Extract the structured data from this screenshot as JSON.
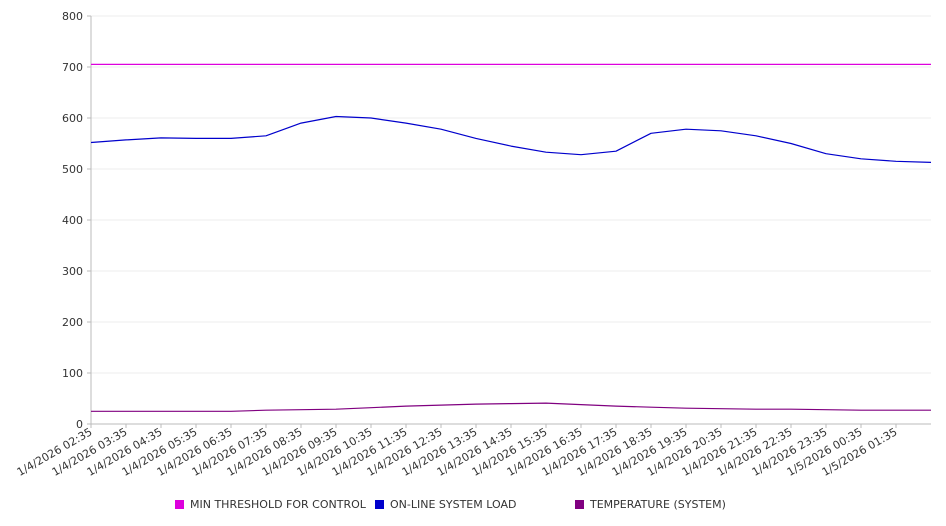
{
  "chart_data": {
    "type": "line",
    "ylim": [
      0,
      800
    ],
    "y_ticks": [
      0,
      100,
      200,
      300,
      400,
      500,
      600,
      700,
      800
    ],
    "x_tick_labels": [
      "1/4/2026 02:35",
      "1/4/2026 03:35",
      "1/4/2026 04:35",
      "1/4/2026 05:35",
      "1/4/2026 06:35",
      "1/4/2026 07:35",
      "1/4/2026 08:35",
      "1/4/2026 09:35",
      "1/4/2026 10:35",
      "1/4/2026 11:35",
      "1/4/2026 12:35",
      "1/4/2026 13:35",
      "1/4/2026 14:35",
      "1/4/2026 15:35",
      "1/4/2026 16:35",
      "1/4/2026 17:35",
      "1/4/2026 18:35",
      "1/4/2026 19:35",
      "1/4/2026 20:35",
      "1/4/2026 21:35",
      "1/4/2026 22:35",
      "1/4/2026 23:35",
      "1/5/2026 00:35",
      "1/5/2026 01:35"
    ],
    "grid": true,
    "legend_position": "bottom",
    "series": [
      {
        "name": "MIN THRESHOLD FOR CONTROL",
        "color": "#dd00dd",
        "values": [
          705,
          705,
          705,
          705,
          705,
          705,
          705,
          705,
          705,
          705,
          705,
          705,
          705,
          705,
          705,
          705,
          705,
          705,
          705,
          705,
          705,
          705,
          705,
          705,
          705
        ]
      },
      {
        "name": "ON-LINE SYSTEM LOAD",
        "color": "#0000cc",
        "values": [
          552,
          557,
          561,
          560,
          560,
          565,
          590,
          603,
          600,
          590,
          578,
          560,
          545,
          533,
          528,
          535,
          570,
          578,
          575,
          565,
          550,
          530,
          520,
          515,
          513
        ]
      },
      {
        "name": "TEMPERATURE (SYSTEM)",
        "color": "#800080",
        "values": [
          25,
          25,
          25,
          25,
          25,
          27,
          28,
          29,
          32,
          35,
          37,
          39,
          40,
          41,
          38,
          35,
          33,
          31,
          30,
          29,
          29,
          28,
          27,
          27,
          27
        ]
      }
    ]
  }
}
